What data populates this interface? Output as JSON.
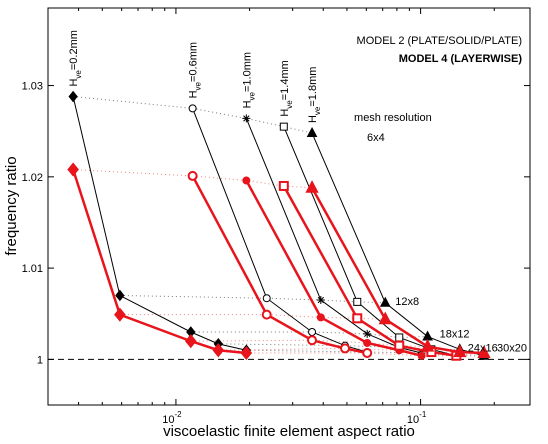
{
  "chart_data": {
    "type": "line",
    "xlabel": "viscoelastic finite element aspect ratio",
    "ylabel": "frequency ratio",
    "xscale": "log",
    "xlim": [
      0.003,
      0.28
    ],
    "ylim": [
      0.995,
      1.0385
    ],
    "xticks": [
      {
        "value": 0.01,
        "label": "10",
        "exponent": "-2"
      },
      {
        "value": 0.1,
        "label": "10",
        "exponent": "-1"
      }
    ],
    "yticks": [
      1,
      1.01,
      1.02,
      1.03
    ],
    "reference_line": 1,
    "legend": "top right",
    "mesh_title": "mesh resolution",
    "meshes": [
      "6x4",
      "12x8",
      "18x12",
      "24x16",
      "30x20"
    ],
    "thickness_labels": [
      {
        "main": "H",
        "sub": "ve",
        "rest": "=0.2mm"
      },
      {
        "main": "H",
        "sub": "ve",
        "rest": "=0.6mm"
      },
      {
        "main": "H",
        "sub": "ve",
        "rest": "=1.0mm"
      },
      {
        "main": "H",
        "sub": "ve",
        "rest": "=1.4mm"
      },
      {
        "main": "H",
        "sub": "ve",
        "rest": "=1.8mm"
      }
    ],
    "models": [
      {
        "name": "MODEL 2 (PLATE/SOLID/PLATE)",
        "color": "#000000",
        "bold": false,
        "line_width": 1,
        "series": [
          {
            "marker": "diamond",
            "x": [
              0.0038,
              0.0059,
              0.0115,
              0.0149,
              0.0194
            ],
            "values": [
              1.0288,
              1.007,
              1.003,
              1.0017,
              1.001
            ]
          },
          {
            "marker": "circle",
            "x": [
              0.0117,
              0.0235,
              0.036,
              0.0491,
              0.0605
            ],
            "values": [
              1.0275,
              1.0067,
              1.003,
              1.0015,
              1.0008
            ]
          },
          {
            "marker": "star",
            "x": [
              0.0194,
              0.0391,
              0.0605,
              0.0818,
              0.101
            ],
            "values": [
              1.0264,
              1.0065,
              1.0028,
              1.0013,
              1.0007
            ]
          },
          {
            "marker": "square",
            "x": [
              0.0276,
              0.0551,
              0.0818,
              0.1107,
              0.14
            ],
            "values": [
              1.0255,
              1.0063,
              1.0024,
              1.0011,
              1.0004
            ]
          },
          {
            "marker": "triangle",
            "x": [
              0.036,
              0.0717,
              0.1068,
              0.1446,
              0.1816
            ],
            "values": [
              1.0248,
              1.0062,
              1.0025,
              1.0011,
              1.0004
            ]
          }
        ]
      },
      {
        "name": "MODEL 4 (LAYERWISE)",
        "color": "#e8141c",
        "bold": true,
        "line_width": 2.5,
        "series": [
          {
            "marker": "diamond",
            "x": [
              0.0038,
              0.0059,
              0.0115,
              0.0149,
              0.0194
            ],
            "values": [
              1.0208,
              1.0049,
              1.002,
              1.001,
              1.0007
            ]
          },
          {
            "marker": "circle",
            "x": [
              0.0117,
              0.0235,
              0.036,
              0.0491,
              0.0605
            ],
            "values": [
              1.0201,
              1.0049,
              1.0021,
              1.0012,
              1.0007
            ]
          },
          {
            "marker": "dot",
            "x": [
              0.0194,
              0.0391,
              0.0605,
              0.0818,
              0.101
            ],
            "values": [
              1.0196,
              1.0046,
              1.0018,
              1.001,
              1.0004
            ]
          },
          {
            "marker": "square",
            "x": [
              0.0276,
              0.0551,
              0.0818,
              0.1107,
              0.14
            ],
            "values": [
              1.019,
              1.0045,
              1.0015,
              1.0008,
              1.0004
            ]
          },
          {
            "marker": "triangle",
            "x": [
              0.036,
              0.0717,
              0.1068,
              0.1446,
              0.1816
            ],
            "values": [
              1.0188,
              1.0044,
              1.0014,
              1.0008,
              1.0007
            ]
          }
        ]
      }
    ]
  }
}
